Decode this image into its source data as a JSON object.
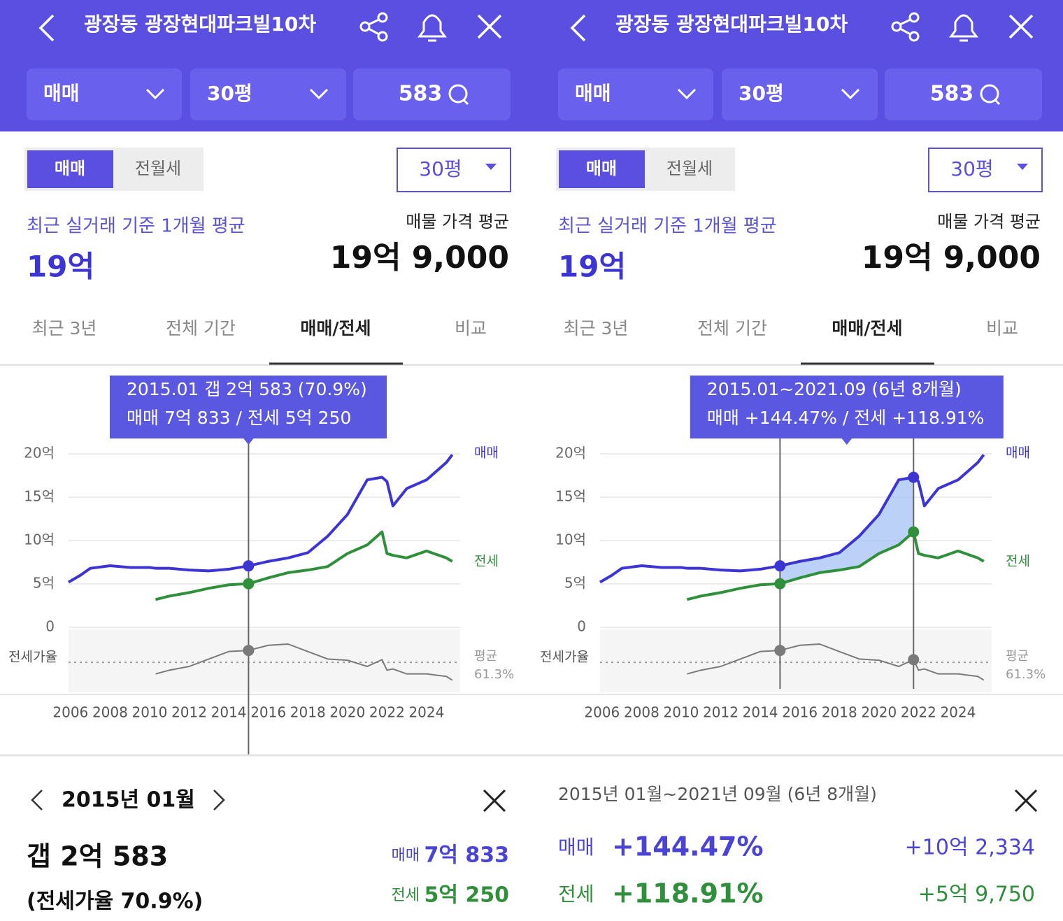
{
  "panels": [
    {
      "header": {
        "title": "광장동 광장현대파크빌10차",
        "filters": [
          "매매",
          "30평",
          "583"
        ]
      },
      "toggle": [
        "매매",
        "전월세"
      ],
      "size": "30평",
      "recent_label": "최근 실거래 기준 1개월 평균",
      "recent_price": "19억",
      "listing_label": "매물 가격 평균",
      "listing_price": "19억 9,000",
      "tabs": [
        "최근 3년",
        "전체 기간",
        "매매/전세",
        "비교"
      ],
      "tooltip": [
        "2015.01  갭 2억 583 (70.9%)",
        "매매 7억 833 / 전세 5억 250"
      ],
      "detail": {
        "title": "2015년 01월",
        "gap": "갭 2억 583",
        "ratio": "(전세가율 70.9%)",
        "rows": [
          {
            "label": "매매",
            "value": "7억 833"
          },
          {
            "label": "전세",
            "value": "5억 250"
          }
        ]
      }
    },
    {
      "header": {
        "title": "광장동 광장현대파크빌10차",
        "filters": [
          "매매",
          "30평",
          "583"
        ]
      },
      "toggle": [
        "매매",
        "전월세"
      ],
      "size": "30평",
      "recent_label": "최근 실거래 기준 1개월 평균",
      "recent_price": "19억",
      "listing_label": "매물 가격 평균",
      "listing_price": "19억 9,000",
      "tabs": [
        "최근 3년",
        "전체 기간",
        "매매/전세",
        "비교"
      ],
      "tooltip": [
        "2015.01~2021.09 (6년 8개월)",
        "매매 +144.47%  /  전세 +118.91%"
      ],
      "detail": {
        "title": "2015년 01월~2021년 09월 (6년 8개월)",
        "rows": [
          {
            "label": "매매",
            "pct": "+144.47%",
            "amount": "+10억 2,334"
          },
          {
            "label": "전세",
            "pct": "+118.91%",
            "amount": "+5억 9,750"
          }
        ]
      }
    }
  ],
  "chart_data": [
    {
      "type": "line",
      "x": [
        2005.9,
        2006.5,
        2007,
        2008,
        2009,
        2010,
        2010.3,
        2011,
        2012,
        2013,
        2014,
        2015,
        2016,
        2017,
        2018,
        2019,
        2020,
        2021,
        2021.75,
        2022,
        2022.3,
        2023,
        2024,
        2025,
        2025.3
      ],
      "xlim": [
        2005.9,
        2025.7
      ],
      "xticks": [
        2006,
        2008,
        2010,
        2012,
        2014,
        2016,
        2018,
        2020,
        2022,
        2024
      ],
      "ylim": [
        0,
        20
      ],
      "yticks": [
        0,
        {
          "value": 5,
          "label": "5억"
        },
        {
          "value": 10,
          "label": "10억"
        },
        {
          "value": 15,
          "label": "15억"
        },
        {
          "value": 20,
          "label": "20억"
        }
      ],
      "y2lim": [
        40,
        85
      ],
      "grid": true,
      "series": [
        {
          "name": "매매",
          "color": "#3d34d4",
          "values": [
            5.2,
            6.0,
            6.8,
            7.1,
            6.9,
            6.9,
            6.8,
            6.8,
            6.6,
            6.5,
            6.7,
            7.0833,
            7.6,
            8.0,
            8.6,
            10.5,
            13.0,
            17.0,
            17.3,
            16.8,
            14.0,
            16.0,
            17.0,
            19.0,
            19.9
          ]
        },
        {
          "name": "전세",
          "color": "#2f8f3a",
          "values": [
            null,
            null,
            null,
            null,
            null,
            null,
            3.2,
            3.6,
            4.0,
            4.5,
            4.9,
            5.025,
            5.7,
            6.3,
            6.6,
            7.0,
            8.5,
            9.5,
            11.0,
            8.5,
            8.3,
            8.0,
            8.8,
            8.0,
            7.6
          ]
        },
        {
          "name": "전세가율",
          "color": "#7a7a7a",
          "axis": "y2",
          "values": [
            null,
            null,
            null,
            null,
            null,
            null,
            52,
            55,
            58,
            64,
            70,
            70.9,
            75,
            76,
            70,
            64,
            63,
            58,
            63.5,
            55,
            56,
            52,
            52,
            50,
            47
          ]
        }
      ],
      "ratio_average": 61.3,
      "ratio_average_title": "평균",
      "ratio_average_label": "61.3%",
      "selected_x": 2015
    },
    {
      "type": "line",
      "x": [
        2005.9,
        2006.5,
        2007,
        2008,
        2009,
        2010,
        2010.3,
        2011,
        2012,
        2013,
        2014,
        2015,
        2016,
        2017,
        2018,
        2019,
        2020,
        2021,
        2021.75,
        2022,
        2022.3,
        2023,
        2024,
        2025,
        2025.3
      ],
      "xlim": [
        2005.9,
        2025.7
      ],
      "xticks": [
        2006,
        2008,
        2010,
        2012,
        2014,
        2016,
        2018,
        2020,
        2022,
        2024
      ],
      "ylim": [
        0,
        20
      ],
      "yticks": [
        0,
        {
          "value": 5,
          "label": "5억"
        },
        {
          "value": 10,
          "label": "10억"
        },
        {
          "value": 15,
          "label": "15억"
        },
        {
          "value": 20,
          "label": "20억"
        }
      ],
      "y2lim": [
        40,
        85
      ],
      "grid": true,
      "series": [
        {
          "name": "매매",
          "color": "#3d34d4",
          "values": [
            5.2,
            6.0,
            6.8,
            7.1,
            6.9,
            6.9,
            6.8,
            6.8,
            6.6,
            6.5,
            6.7,
            7.0833,
            7.6,
            8.0,
            8.6,
            10.5,
            13.0,
            17.0,
            17.3,
            16.8,
            14.0,
            16.0,
            17.0,
            19.0,
            19.9
          ]
        },
        {
          "name": "전세",
          "color": "#2f8f3a",
          "values": [
            null,
            null,
            null,
            null,
            null,
            null,
            3.2,
            3.6,
            4.0,
            4.5,
            4.9,
            5.025,
            5.7,
            6.3,
            6.6,
            7.0,
            8.5,
            9.5,
            11.0,
            8.5,
            8.3,
            8.0,
            8.8,
            8.0,
            7.6
          ]
        },
        {
          "name": "전세가율",
          "color": "#7a7a7a",
          "axis": "y2",
          "values": [
            null,
            null,
            null,
            null,
            null,
            null,
            52,
            55,
            58,
            64,
            70,
            70.9,
            75,
            76,
            70,
            64,
            63,
            58,
            63.5,
            55,
            56,
            52,
            52,
            50,
            47
          ]
        }
      ],
      "ratio_average": 61.3,
      "ratio_average_title": "평균",
      "ratio_average_label": "61.3%",
      "selected_range": [
        2015,
        2021.75
      ]
    }
  ]
}
